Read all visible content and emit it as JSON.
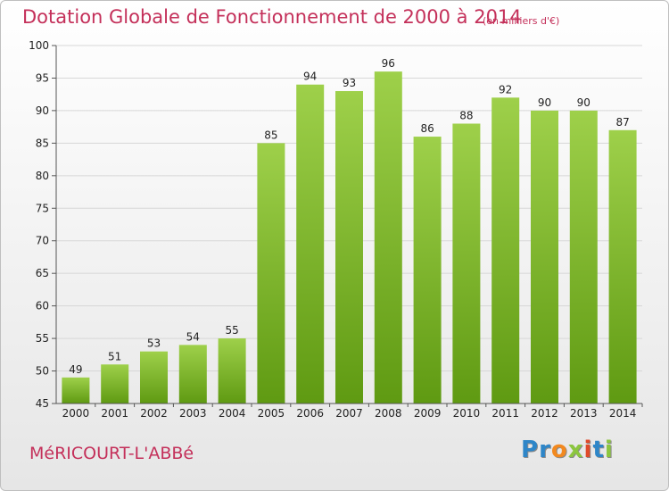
{
  "title": "Dotation Globale de Fonctionnement de 2000 à 2014",
  "subtitle": "(en milliers d'€)",
  "commune": "MéRICOURT-L'ABBé",
  "logo": {
    "letters": [
      {
        "ch": "P",
        "color": "#2e86c8"
      },
      {
        "ch": "r",
        "color": "#2e86c8"
      },
      {
        "ch": "o",
        "color": "#f2891f"
      },
      {
        "ch": "x",
        "color": "#8cc63f"
      },
      {
        "ch": "i",
        "color": "#e04a2a"
      },
      {
        "ch": "t",
        "color": "#2e86c8"
      },
      {
        "ch": "i",
        "color": "#8cc63f"
      }
    ]
  },
  "chart_data": {
    "type": "bar",
    "categories": [
      "2000",
      "2001",
      "2002",
      "2003",
      "2004",
      "2005",
      "2006",
      "2007",
      "2008",
      "2009",
      "2010",
      "2011",
      "2012",
      "2013",
      "2014"
    ],
    "values": [
      49,
      51,
      53,
      54,
      55,
      85,
      94,
      93,
      96,
      86,
      88,
      92,
      90,
      90,
      87
    ],
    "ylim": [
      45,
      100
    ],
    "yticks": [
      45,
      50,
      55,
      60,
      65,
      70,
      75,
      80,
      85,
      90,
      95,
      100
    ],
    "grid": true,
    "colors": {
      "bar_light": "#9ed04a",
      "bar_dark": "#5f9a12",
      "axis": "#555555",
      "grid": "#d7d7d7",
      "text": "#222222"
    }
  }
}
